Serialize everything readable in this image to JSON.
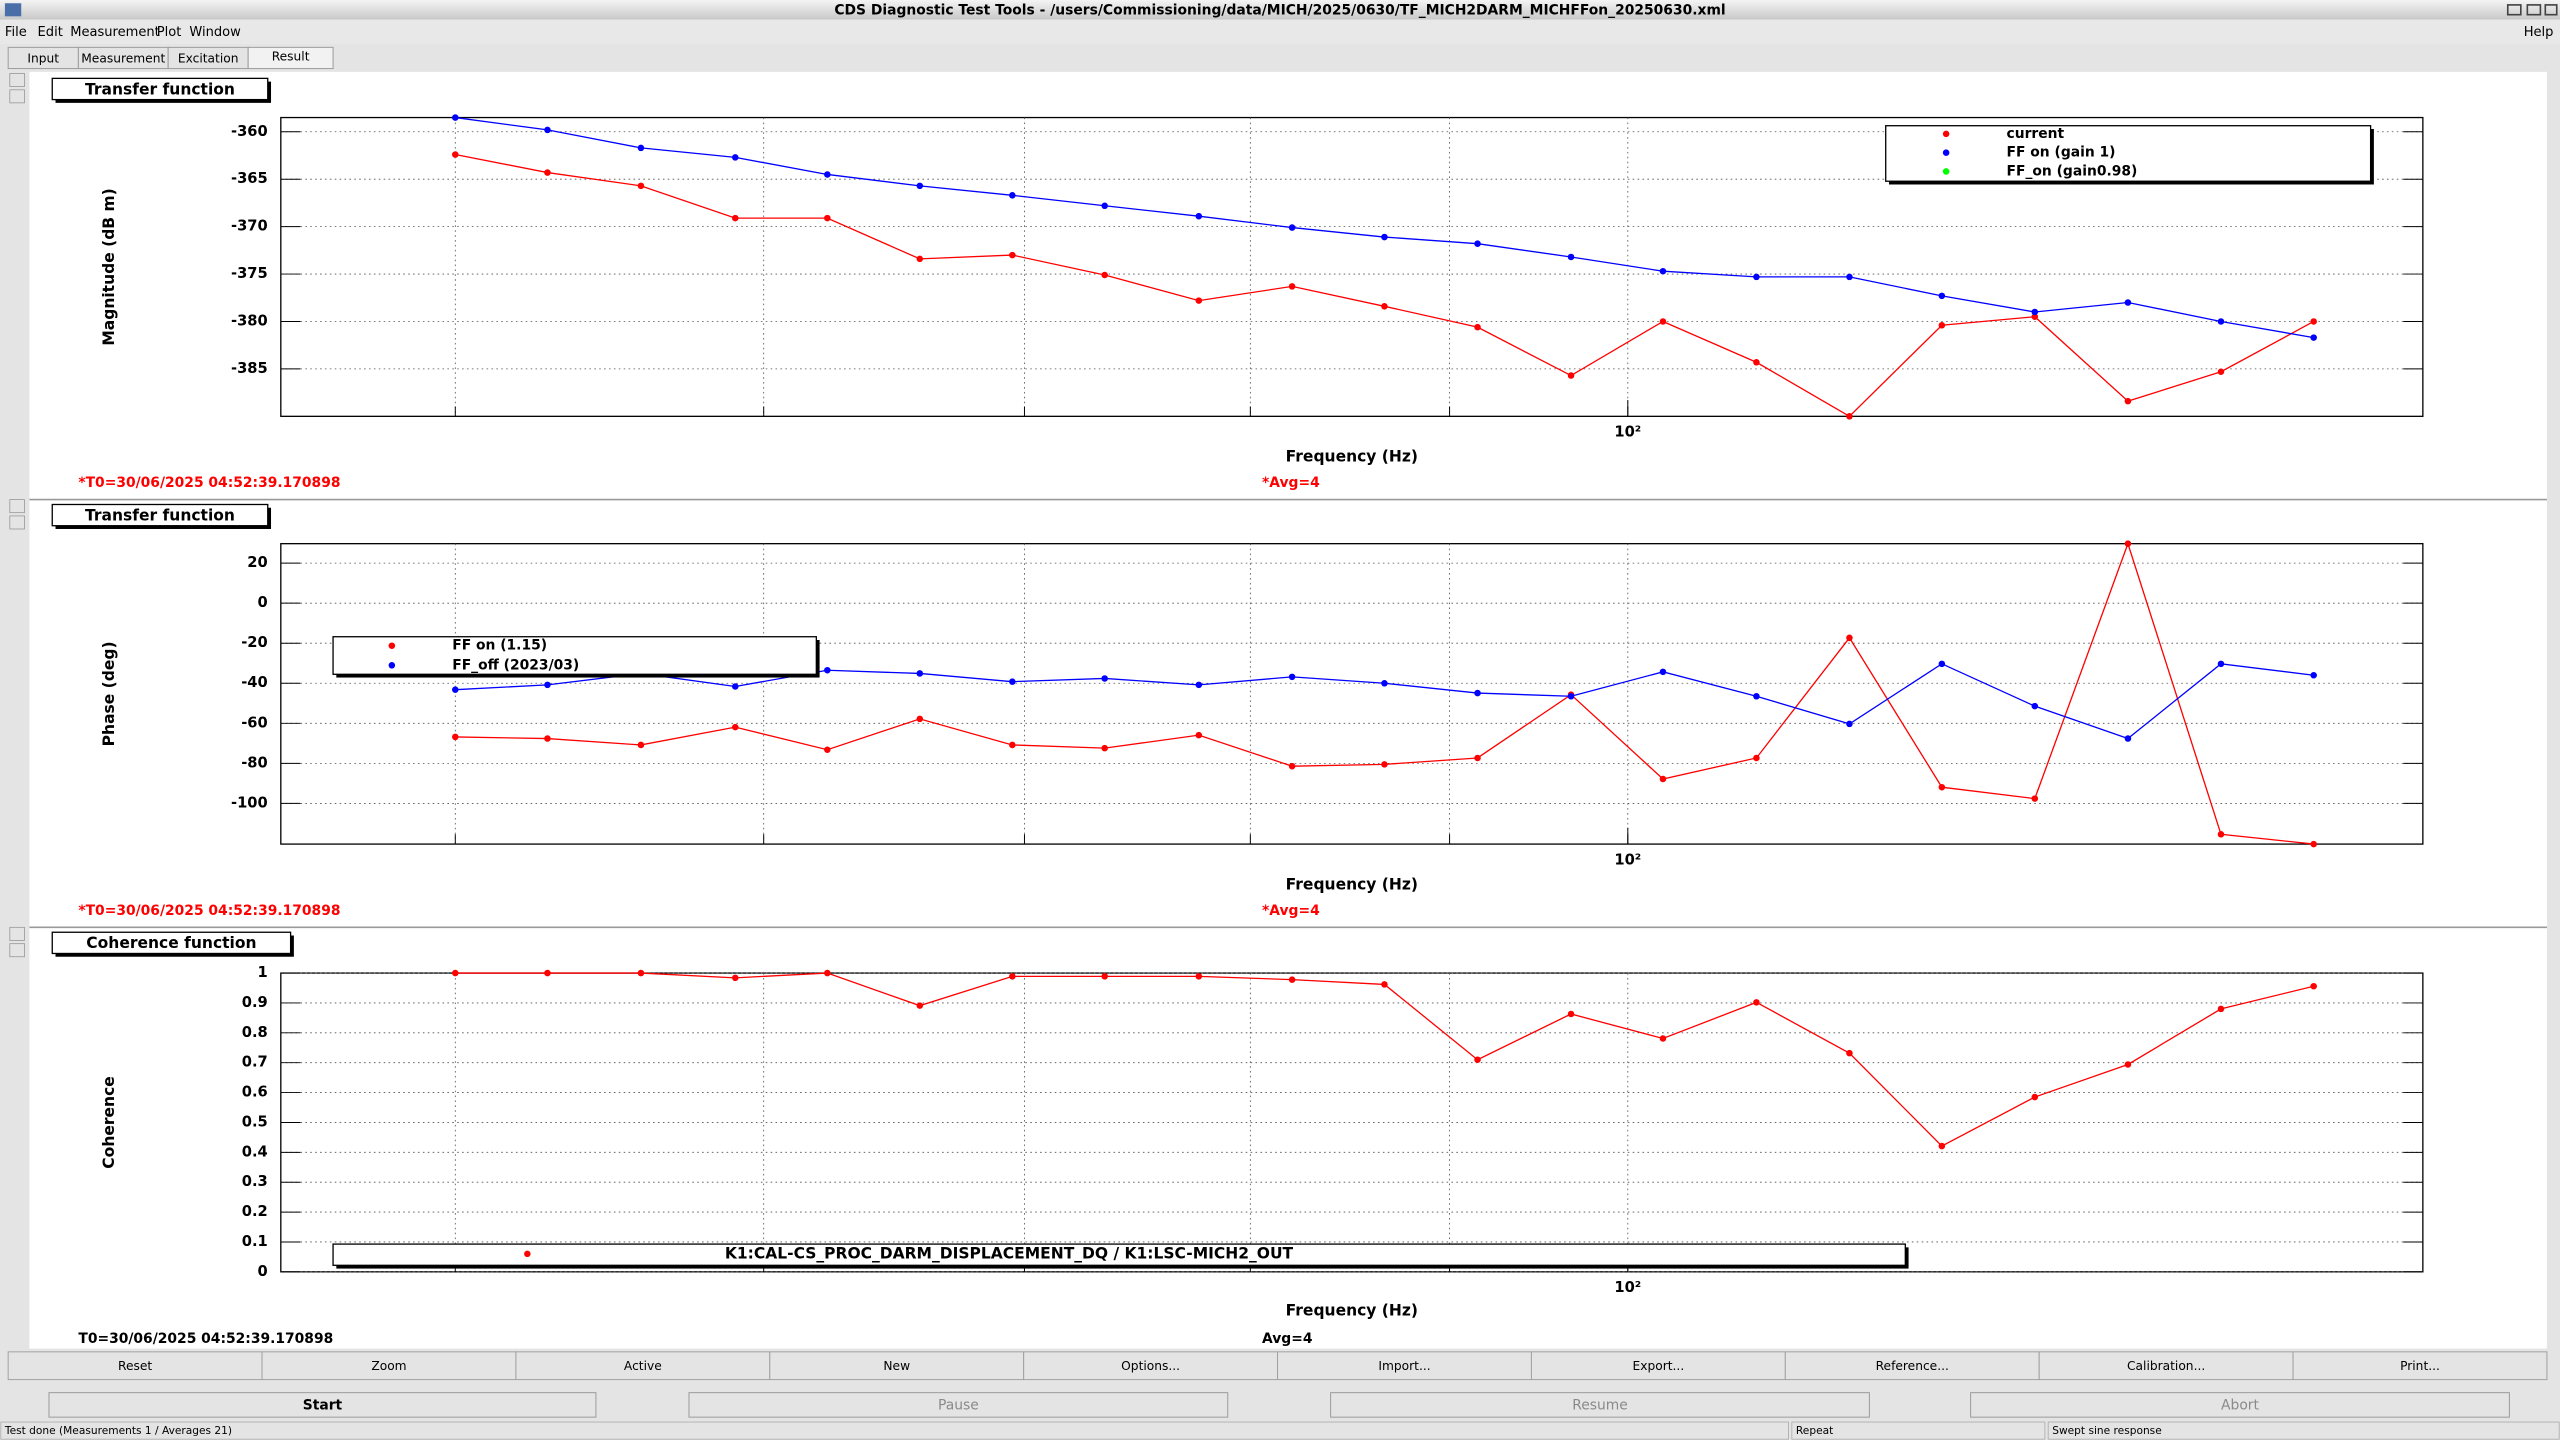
{
  "window": {
    "title": "CDS Diagnostic Test Tools - /users/Commissioning/data/MICH/2025/0630/TF_MICH2DARM_MICHFFon_20250630.xml"
  },
  "menu": [
    "File",
    "Edit",
    "Measurement",
    "Plot",
    "Window"
  ],
  "help": "Help",
  "tabs": [
    "Input",
    "Measurement",
    "Excitation",
    "Result"
  ],
  "chart_data": [
    {
      "type": "line",
      "title": "Transfer function",
      "xlabel": "Frequency (Hz)",
      "ylabel": "Magnitude (dB m)",
      "xscale": "log",
      "grid": true,
      "legend": "top-right",
      "x": [
        50,
        52.8,
        55.8,
        59,
        62.3,
        65.8,
        69.5,
        73.4,
        77.6,
        82,
        86.6,
        91.5,
        96.7,
        102.1,
        107.9,
        114,
        120.4,
        127.2,
        134.4,
        142,
        150
      ],
      "xlim": [
        45.1,
        160
      ],
      "xgrid": [
        50,
        60,
        70,
        80,
        90,
        100
      ],
      "xticks": [
        {
          "value": 100,
          "label": "10²"
        }
      ],
      "ylim": [
        -390,
        -358.5
      ],
      "yticks": [
        -360,
        -365,
        -370,
        -375,
        -380,
        -385
      ],
      "series": [
        {
          "name": "current",
          "color": "#ff0000",
          "values": [
            -362.4,
            -364.3,
            -365.7,
            -369.1,
            -369.1,
            -373.4,
            -373,
            -375.1,
            -377.8,
            -376.3,
            -378.4,
            -380.6,
            -385.7,
            -380,
            -384.3,
            -390,
            -380.4,
            -379.5,
            -388.4,
            -385.3,
            -380
          ]
        },
        {
          "name": "FF on (gain 1)",
          "color": "#0000ff",
          "values": [
            -358.5,
            -359.8,
            -361.7,
            -362.7,
            -364.5,
            -365.7,
            -366.7,
            -367.8,
            -368.9,
            -370.1,
            -371.1,
            -371.8,
            -373.2,
            -374.7,
            -375.3,
            -375.3,
            -377.3,
            -379,
            -378,
            -380,
            -381.7
          ]
        },
        {
          "name": "FF_on (gain0.98)",
          "color": "#00ff00",
          "values": [
            null,
            null,
            null,
            null,
            null,
            null,
            null,
            null,
            null,
            null,
            null,
            null,
            null,
            null,
            null,
            null,
            null,
            null,
            null,
            null,
            null
          ]
        }
      ],
      "t0": "*T0=30/06/2025 04:52:39.170898",
      "avg": "*Avg=4",
      "annotation_color": "#ff0000"
    },
    {
      "type": "line",
      "title": "Transfer function",
      "xlabel": "Frequency (Hz)",
      "ylabel": "Phase (deg)",
      "xscale": "log",
      "grid": true,
      "legend": "left",
      "x": [
        50,
        52.8,
        55.8,
        59,
        62.3,
        65.8,
        69.5,
        73.4,
        77.6,
        82,
        86.6,
        91.5,
        96.7,
        102.1,
        107.9,
        114,
        120.4,
        127.2,
        134.4,
        142,
        150
      ],
      "xlim": [
        45.1,
        160
      ],
      "xgrid": [
        50,
        60,
        70,
        80,
        90,
        100
      ],
      "xticks": [
        {
          "value": 100,
          "label": "10²"
        }
      ],
      "ylim": [
        -120.3,
        29.7
      ],
      "yticks": [
        20,
        0,
        -20,
        -40,
        -60,
        -80,
        -100
      ],
      "series": [
        {
          "name": "FF on (1.15)",
          "color": "#ff0000",
          "values": [
            -66.8,
            -67.6,
            -70.8,
            -61.9,
            -73.2,
            -57.8,
            -70.8,
            -72.4,
            -65.9,
            -81.4,
            -80.5,
            -77.3,
            -45.7,
            -87.8,
            -77.3,
            -17.3,
            -91.9,
            -97.6,
            29.7,
            -115.4,
            -120.3
          ]
        },
        {
          "name": "FF_off (2023/03)",
          "color": "#0000ff",
          "values": [
            -43.2,
            -40.8,
            -35.1,
            -41.6,
            -33.5,
            -35.1,
            -39.2,
            -37.6,
            -40.8,
            -36.8,
            -40,
            -44.9,
            -46.5,
            -34.3,
            -46.5,
            -60.3,
            -30.3,
            -51.4,
            -67.6,
            -30.3,
            -36
          ]
        }
      ],
      "t0": "*T0=30/06/2025 04:52:39.170898",
      "avg": "*Avg=4",
      "annotation_color": "#ff0000"
    },
    {
      "type": "line",
      "title": "Coherence function",
      "xlabel": "Frequency (Hz)",
      "ylabel": "Coherence",
      "xscale": "log",
      "grid": true,
      "legend": "bottom",
      "x": [
        50,
        52.8,
        55.8,
        59,
        62.3,
        65.8,
        69.5,
        73.4,
        77.6,
        82,
        86.6,
        91.5,
        96.7,
        102.1,
        107.9,
        114,
        120.4,
        127.2,
        134.4,
        142,
        150
      ],
      "xlim": [
        45.1,
        160
      ],
      "xgrid": [
        50,
        60,
        70,
        80,
        90,
        100
      ],
      "xticks": [
        {
          "value": 100,
          "label": "10²"
        }
      ],
      "ylim": [
        0,
        1
      ],
      "yticks": [
        0,
        0.1,
        0.2,
        0.3,
        0.4,
        0.5,
        0.6,
        0.7,
        0.8,
        0.9,
        1
      ],
      "series": [
        {
          "name": "K1:CAL-CS_PROC_DARM_DISPLACEMENT_DQ / K1:LSC-MICH2_OUT",
          "color": "#ff0000",
          "values": [
            1,
            1,
            1,
            0.984,
            1,
            0.891,
            0.989,
            0.989,
            0.989,
            0.978,
            0.962,
            0.71,
            0.863,
            0.781,
            0.902,
            0.732,
            0.421,
            0.585,
            0.694,
            0.88,
            0.956
          ]
        }
      ],
      "t0": "T0=30/06/2025 04:52:39.170898",
      "avg": "Avg=4",
      "annotation_color": "#000000"
    }
  ],
  "buttons": [
    "Reset",
    "Zoom",
    "Active",
    "New",
    "Options...",
    "Import...",
    "Export...",
    "Reference...",
    "Calibration...",
    "Print..."
  ],
  "controls": [
    "Start",
    "Pause",
    "Resume",
    "Abort"
  ],
  "status": [
    "Test done (Measurements 1 / Averages 21)",
    "Repeat",
    "Swept sine response"
  ]
}
